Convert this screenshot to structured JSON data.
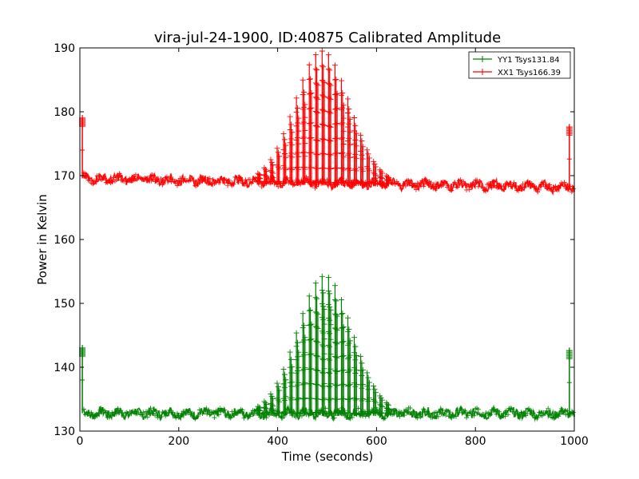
{
  "chart_data": {
    "type": "line",
    "title": "vira-jul-24-1900, ID:40875 Calibrated Amplitude",
    "xlabel": "Time (seconds)",
    "ylabel": "Power in Kelvin",
    "xlim": [
      0,
      1000
    ],
    "ylim": [
      130,
      190
    ],
    "xticks": [
      0,
      200,
      400,
      600,
      800,
      1000
    ],
    "yticks": [
      130,
      140,
      150,
      160,
      170,
      180,
      190
    ],
    "grid": false,
    "legend_position": "top-right",
    "series": [
      {
        "name": "YY1 Tsys131.84",
        "color": "#008000",
        "baseline": 132.8,
        "baseline_noise": 0.7,
        "start_spike": {
          "x": 5,
          "y": 143
        },
        "end_spike": {
          "x": 990,
          "y": 142.6
        },
        "peak": {
          "x": 495,
          "y": 154.3,
          "sigma": 55
        },
        "pulse_start": 360,
        "pulse_end": 620,
        "pulse_period": 13,
        "x_end": 1000
      },
      {
        "name": "XX1 Tsys166.39",
        "color": "#ff0000",
        "baseline_start": 169.6,
        "baseline_end": 168.2,
        "baseline_noise": 0.7,
        "start_spike": {
          "x": 5,
          "y": 179
        },
        "end_spike": {
          "x": 990,
          "y": 177.6
        },
        "peak": {
          "x": 490,
          "y": 189.5,
          "sigma": 55
        },
        "pulse_start": 360,
        "pulse_end": 630,
        "pulse_period": 13,
        "x_end": 1000
      }
    ]
  }
}
